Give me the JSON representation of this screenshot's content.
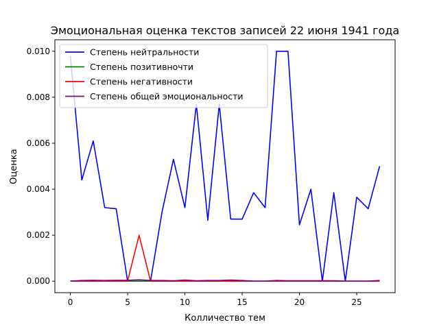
{
  "chart_data": {
    "type": "line",
    "title": "Эмоциональная оценка текстов записей 22 июня 1941 года",
    "xlabel": "Колличество тем",
    "ylabel": "Оценка",
    "xlim": [
      -1.35,
      28.35
    ],
    "ylim": [
      -0.0005,
      0.0105
    ],
    "xticks": [
      0,
      5,
      10,
      15,
      20,
      25
    ],
    "yticks": [
      0.0,
      0.002,
      0.004,
      0.006,
      0.008,
      0.01
    ],
    "ytick_labels": [
      "0.000",
      "0.002",
      "0.004",
      "0.006",
      "0.008",
      "0.010"
    ],
    "grid": false,
    "legend_position": "top-left",
    "x": [
      0,
      1,
      2,
      3,
      4,
      5,
      6,
      7,
      8,
      9,
      10,
      11,
      12,
      13,
      14,
      15,
      16,
      17,
      18,
      19,
      20,
      21,
      22,
      23,
      24,
      25,
      26,
      27
    ],
    "series": [
      {
        "name": "Степень нейтральности",
        "color": "#0000ff",
        "values": [
          0.0098,
          0.0044,
          0.0061,
          0.0032,
          0.00315,
          0.0,
          0.0,
          0.0,
          0.003,
          0.0053,
          0.0032,
          0.0077,
          0.00265,
          0.0077,
          0.0027,
          0.0027,
          0.00385,
          0.0032,
          0.01,
          0.01,
          0.00245,
          0.004,
          0.0,
          0.00385,
          0.0,
          0.00365,
          0.00315,
          0.005
        ]
      },
      {
        "name": "Степень позитивночти",
        "color": "#008000",
        "values": [
          0.0,
          0.0,
          0.0,
          0.0,
          0.0,
          0.0,
          0.0,
          0.0,
          0.0,
          0.0,
          0.0,
          0.0,
          0.0,
          0.0,
          0.0,
          0.0,
          0.0,
          0.0,
          0.0,
          0.0,
          0.0,
          0.0,
          0.0,
          0.0,
          0.0,
          0.0,
          0.0,
          0.0
        ]
      },
      {
        "name": "Степень негативности",
        "color": "#ff0000",
        "values": [
          0.0,
          0.0,
          0.0,
          0.0,
          0.0,
          0.0,
          0.002,
          0.0,
          0.0,
          0.0,
          0.0,
          0.0,
          0.0,
          0.0,
          0.0,
          0.0,
          0.0,
          0.0,
          0.0,
          0.0,
          0.0,
          0.0,
          0.0,
          0.0,
          0.0,
          0.0,
          0.0,
          0.0
        ]
      },
      {
        "name": "Степень  общей эмоциональности",
        "color": "#800080",
        "values": [
          0.0,
          3e-05,
          4e-05,
          3e-05,
          4e-05,
          4e-05,
          6e-05,
          3e-05,
          3e-05,
          2e-05,
          5e-05,
          2e-05,
          3e-05,
          3e-05,
          5e-05,
          3e-05,
          0.0,
          0.0,
          3e-05,
          2e-05,
          2e-05,
          2e-05,
          2e-05,
          2e-05,
          0.0,
          0.0,
          0.0,
          3e-05
        ]
      }
    ]
  }
}
